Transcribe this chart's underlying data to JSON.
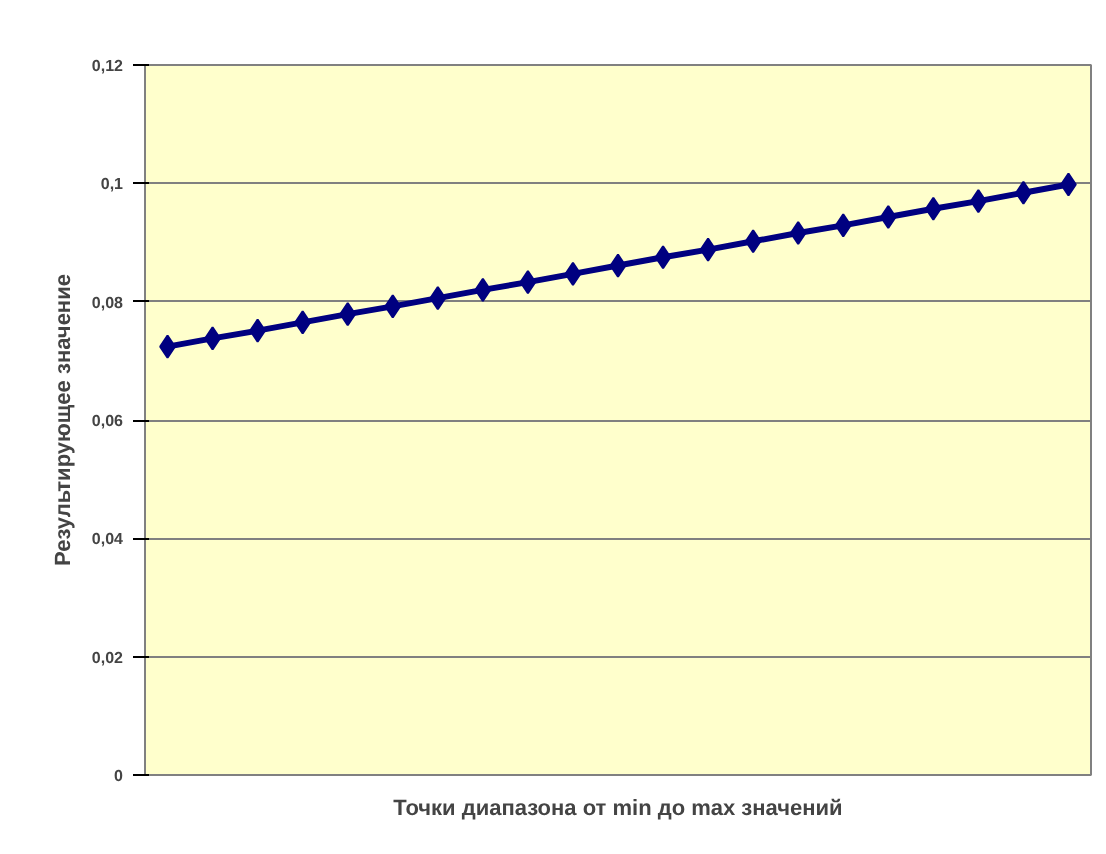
{
  "chart_data": {
    "type": "line",
    "xlabel": "Точки диапазона от min до max значений",
    "ylabel": "Результирующее значение",
    "categories": [
      null,
      null,
      null,
      null,
      null,
      null,
      null,
      null,
      null,
      null,
      null,
      null,
      null,
      null,
      null,
      null,
      null,
      null,
      null,
      null,
      null
    ],
    "series": [
      {
        "color": "#000080",
        "values": [
          0.0724,
          0.0738,
          0.0751,
          0.0765,
          0.0779,
          0.0792,
          0.0806,
          0.082,
          0.0833,
          0.0847,
          0.0861,
          0.0875,
          0.0888,
          0.0902,
          0.0916,
          0.0929,
          0.0943,
          0.0957,
          0.097,
          0.0984,
          0.0998
        ]
      }
    ],
    "ylim": [
      0,
      0.12
    ],
    "yticks": [
      0,
      {
        "value": 0.02,
        "label": "0,02"
      },
      {
        "value": 0.04,
        "label": "0,04"
      },
      {
        "value": 0.06,
        "label": "0,06"
      },
      {
        "value": 0.08,
        "label": "0,08"
      },
      {
        "value": 0.1,
        "label": "0,1"
      },
      {
        "value": 0.12,
        "label": "0,12"
      }
    ],
    "grid": "y",
    "tick_labels": "y",
    "marker": "diamond",
    "line_style": "solid"
  }
}
